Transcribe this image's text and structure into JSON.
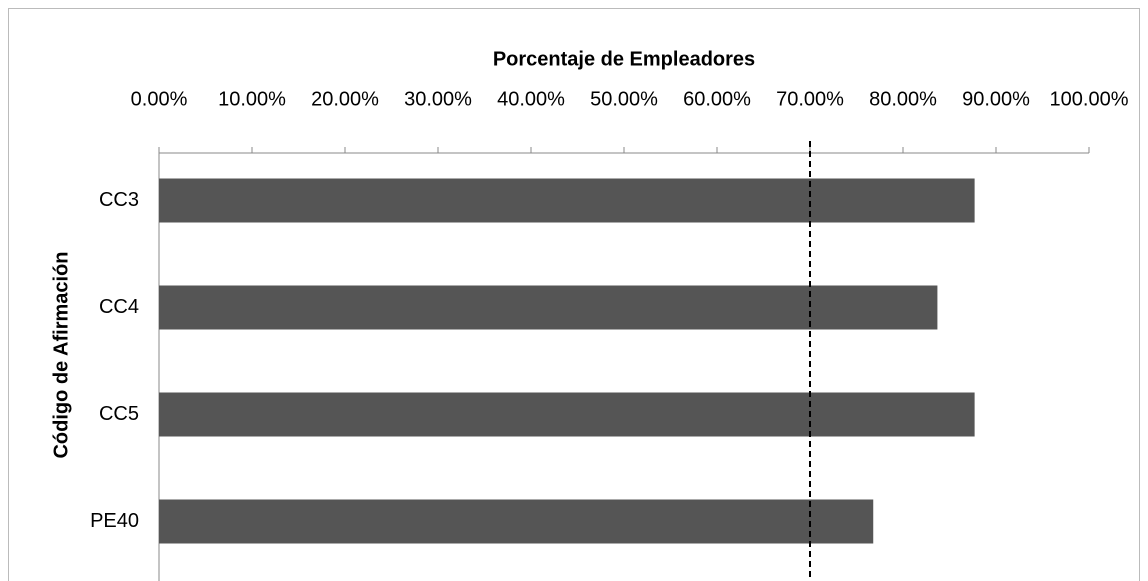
{
  "chart_data": {
    "type": "bar",
    "orientation": "horizontal",
    "x_label": "Porcentaje de Empleadores",
    "y_label": "Código de Afirmación",
    "categories": [
      "CC3",
      "CC4",
      "CC5",
      "PE40"
    ],
    "values": [
      87.7,
      83.7,
      87.7,
      76.8
    ],
    "color": "#555555",
    "xlim": [
      0,
      100
    ],
    "xticks": [
      {
        "value": 0,
        "label": "0.00%"
      },
      {
        "value": 10,
        "label": "10.00%"
      },
      {
        "value": 20,
        "label": "20.00%"
      },
      {
        "value": 30,
        "label": "30.00%"
      },
      {
        "value": 40,
        "label": "40.00%"
      },
      {
        "value": 50,
        "label": "50.00%"
      },
      {
        "value": 60,
        "label": "60.00%"
      },
      {
        "value": 70,
        "label": "70.00%"
      },
      {
        "value": 80,
        "label": "80.00%"
      },
      {
        "value": 90,
        "label": "90.00%"
      },
      {
        "value": 100,
        "label": "100.00%"
      }
    ],
    "reference_line": 70
  }
}
